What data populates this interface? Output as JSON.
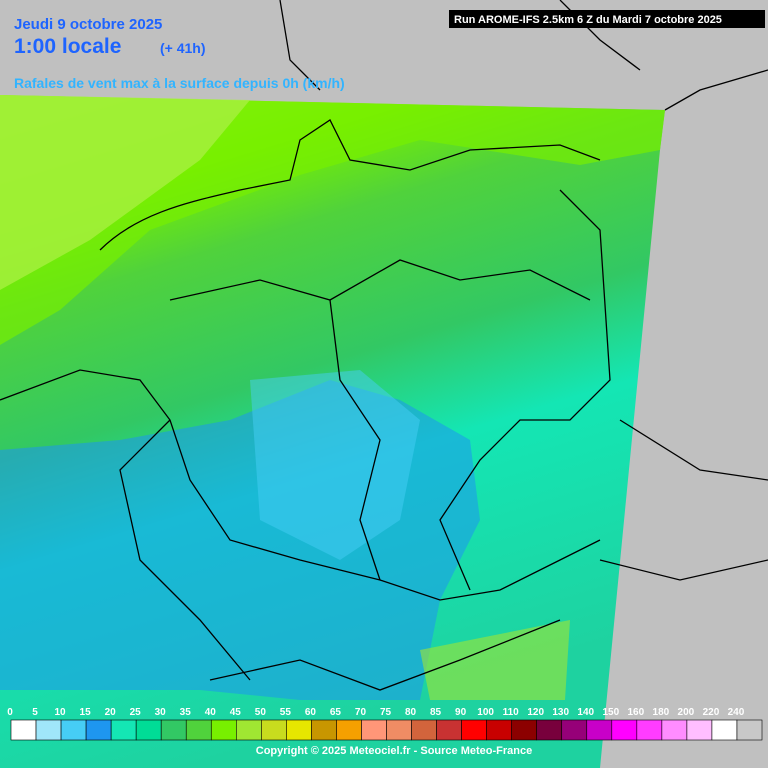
{
  "header": {
    "date": "Jeudi 9 octobre 2025",
    "time": "1:00 locale",
    "lead": "(+ 41h)",
    "description": "Rafales de vent max à la surface depuis 0h (km/h)",
    "run": "Run AROME-IFS 2.5km 6 Z du Mardi 7 octobre 2025"
  },
  "legend": {
    "labels": [
      0,
      5,
      10,
      15,
      20,
      25,
      30,
      35,
      40,
      45,
      50,
      55,
      60,
      65,
      70,
      75,
      80,
      85,
      90,
      100,
      110,
      120,
      130,
      140,
      150,
      160,
      180,
      200,
      220,
      240
    ],
    "colors": [
      "#ffffff",
      "#a0e6fa",
      "#46cdf5",
      "#1e96f0",
      "#14e6b4",
      "#00dc96",
      "#32c864",
      "#50d23c",
      "#78f000",
      "#a0e632",
      "#c8dc1e",
      "#e6e600",
      "#c89600",
      "#f5a000",
      "#ff9678",
      "#f08c64",
      "#d2643c",
      "#c83232",
      "#ff0000",
      "#c80000",
      "#8c0000",
      "#78003c",
      "#960078",
      "#c800c8",
      "#ff00ff",
      "#ff3cff",
      "#ff8cff",
      "#ffbeff",
      "#ffffff",
      "#c8c8c8"
    ]
  },
  "footer": {
    "copyright": "Copyright © 2025 Meteociel.fr - Source Meteo-France"
  }
}
